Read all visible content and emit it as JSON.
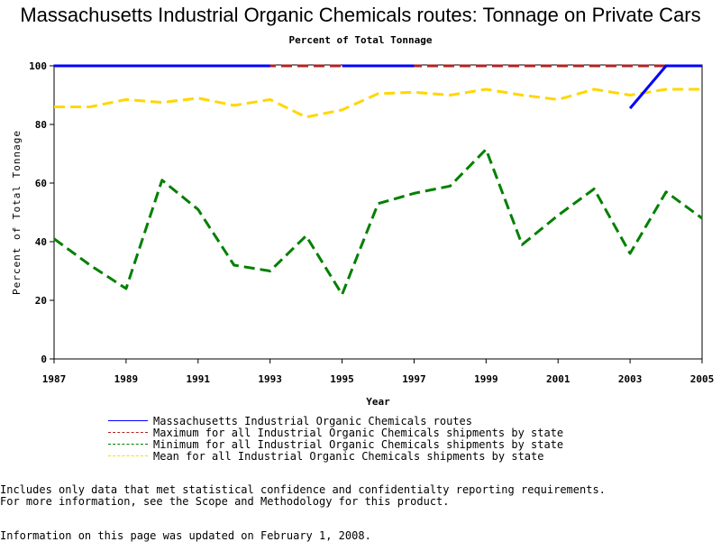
{
  "page": {
    "title": "Massachusetts Industrial Organic Chemicals routes: Tonnage on Private Cars",
    "subtitle": "Percent of Total Tonnage",
    "notes": [
      "Includes only data that met statistical confidence and confidentialty reporting requirements.",
      "For more information, see the Scope and Methodology for this product.",
      "Information on this page was updated on February 1, 2008."
    ]
  },
  "chart_data": {
    "type": "line",
    "title": "Massachusetts Industrial Organic Chemicals routes: Tonnage on Private Cars",
    "subtitle": "Percent of Total Tonnage",
    "xlabel": "Year",
    "ylabel": "Percent of Total Tonnage",
    "xlim": [
      1987,
      2005
    ],
    "ylim": [
      0,
      100
    ],
    "xticks": [
      "1987",
      "1989",
      "1991",
      "1993",
      "1995",
      "1997",
      "1999",
      "2001",
      "2003",
      "2005"
    ],
    "yticks": [
      "0",
      "20",
      "40",
      "60",
      "80",
      "100"
    ],
    "grid": false,
    "legend_position": "bottom",
    "series": [
      {
        "name": "Massachusetts Industrial Organic Chemicals routes",
        "color": "#0000ff",
        "dash": "solid",
        "points": [
          [
            1987,
            100
          ],
          [
            1988,
            100
          ],
          [
            1989,
            100
          ],
          [
            1990,
            100
          ],
          [
            1991,
            100
          ],
          [
            1992,
            100
          ],
          [
            1993,
            100
          ],
          [
            1995,
            100
          ],
          [
            1996,
            100
          ],
          [
            1997,
            100
          ],
          [
            2003,
            85.5
          ],
          [
            2004,
            100
          ],
          [
            2005,
            100
          ]
        ]
      },
      {
        "name": "Maximum for all Industrial Organic Chemicals shipments by state",
        "color": "#b22222",
        "dash": "dashed",
        "points": [
          [
            1987,
            100
          ],
          [
            1988,
            100
          ],
          [
            1989,
            100
          ],
          [
            1990,
            100
          ],
          [
            1991,
            100
          ],
          [
            1992,
            100
          ],
          [
            1993,
            100
          ],
          [
            1994,
            100
          ],
          [
            1995,
            100
          ],
          [
            1996,
            100
          ],
          [
            1997,
            100
          ],
          [
            1998,
            100
          ],
          [
            1999,
            100
          ],
          [
            2000,
            100
          ],
          [
            2001,
            100
          ],
          [
            2002,
            100
          ],
          [
            2003,
            100
          ],
          [
            2004,
            100
          ],
          [
            2005,
            100
          ]
        ]
      },
      {
        "name": "Minimum for all Industrial Organic Chemicals shipments by state",
        "color": "#008000",
        "dash": "dashed",
        "points": [
          [
            1987,
            41
          ],
          [
            1988,
            32
          ],
          [
            1989,
            24
          ],
          [
            1990,
            61
          ],
          [
            1991,
            51
          ],
          [
            1992,
            32
          ],
          [
            1993,
            30
          ],
          [
            1994,
            42
          ],
          [
            1995,
            22
          ],
          [
            1996,
            53
          ],
          [
            1997,
            56.5
          ],
          [
            1998,
            59
          ],
          [
            1999,
            71.5
          ],
          [
            2000,
            39
          ],
          [
            2001,
            49
          ],
          [
            2002,
            58
          ],
          [
            2003,
            36
          ],
          [
            2004,
            57
          ],
          [
            2005,
            48
          ]
        ]
      },
      {
        "name": "Mean for all Industrial Organic Chemicals shipments by state",
        "color": "#ffd700",
        "dash": "dashed",
        "points": [
          [
            1987,
            86
          ],
          [
            1988,
            86
          ],
          [
            1989,
            88.5
          ],
          [
            1990,
            87.5
          ],
          [
            1991,
            89
          ],
          [
            1992,
            86.5
          ],
          [
            1993,
            88.5
          ],
          [
            1994,
            82.5
          ],
          [
            1995,
            85
          ],
          [
            1996,
            90.5
          ],
          [
            1997,
            91
          ],
          [
            1998,
            90
          ],
          [
            1999,
            92
          ],
          [
            2000,
            90
          ],
          [
            2001,
            88.5
          ],
          [
            2002,
            92
          ],
          [
            2003,
            90
          ],
          [
            2004,
            92
          ],
          [
            2005,
            92
          ]
        ]
      }
    ]
  }
}
